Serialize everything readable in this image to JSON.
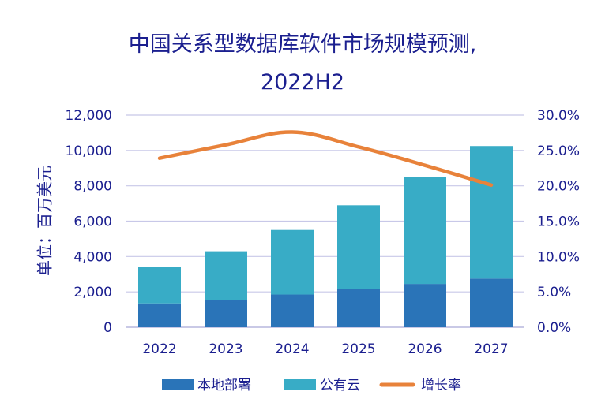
{
  "chart_data": {
    "type": "bar",
    "stacked": true,
    "title_line1": "中国关系型数据库软件市场规模预测,",
    "title_line2": "2022H2",
    "ylabel": "单位：百万美元",
    "categories": [
      "2022",
      "2023",
      "2024",
      "2025",
      "2026",
      "2027"
    ],
    "series": [
      {
        "name": "本地部署",
        "type": "bar",
        "axis": "left",
        "color": "#2a74b8",
        "values": [
          1350,
          1550,
          1850,
          2150,
          2450,
          2750
        ]
      },
      {
        "name": "公有云",
        "type": "bar",
        "axis": "left",
        "color": "#38acc6",
        "values": [
          2050,
          2750,
          3650,
          4750,
          6050,
          7500
        ]
      },
      {
        "name": "增长率",
        "type": "line",
        "axis": "right",
        "color": "#e8823a",
        "values": [
          23.9,
          25.8,
          27.6,
          25.5,
          22.9,
          20.1
        ]
      }
    ],
    "ylim_left": [
      0,
      12000
    ],
    "yticks_left": [
      "0",
      "2,000",
      "4,000",
      "6,000",
      "8,000",
      "10,000",
      "12,000"
    ],
    "ylim_right": [
      0,
      30
    ],
    "yticks_right": [
      "0.0%",
      "5.0%",
      "10.0%",
      "15.0%",
      "20.0%",
      "25.0%",
      "30.0%"
    ],
    "grid": true,
    "legend_position": "bottom"
  }
}
